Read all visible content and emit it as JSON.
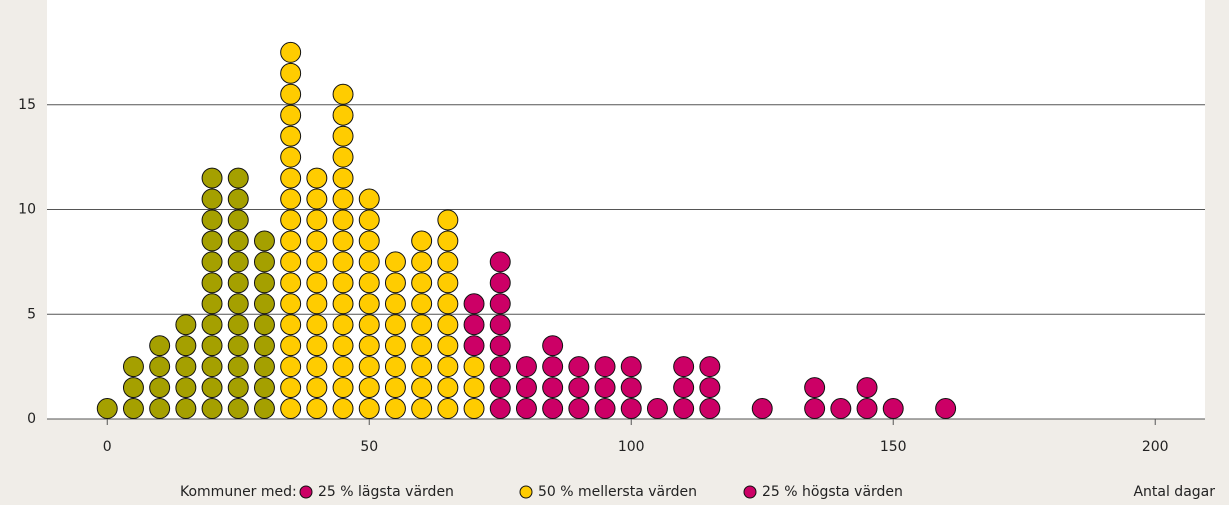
{
  "chart_data": {
    "type": "dot",
    "x_label": "Antal dagar",
    "legend_title": "Kommuner med:",
    "xlim": [
      -11.5,
      209.5
    ],
    "xticks": [
      0,
      50,
      100,
      150,
      200
    ],
    "ylim": [
      0,
      20
    ],
    "yticks": [
      0,
      5,
      10,
      15
    ],
    "grid": true,
    "series": [
      {
        "name": "25 % lägsta värden",
        "color": "#a5a000",
        "legend_color": "#cc0066",
        "x": [
          0,
          5,
          10,
          15,
          20,
          25,
          30
        ],
        "values": [
          1,
          3,
          4,
          5,
          12,
          12,
          9
        ]
      },
      {
        "name": "50 % mellersta värden",
        "color": "#ffcc00",
        "x": [
          35,
          40,
          45,
          50,
          55,
          60,
          65,
          70
        ],
        "values": [
          18,
          12,
          16,
          11,
          8,
          9,
          10,
          3
        ]
      },
      {
        "name": "25 % högsta värden",
        "color": "#cc0066",
        "x": [
          70,
          75,
          80,
          85,
          90,
          95,
          100,
          105,
          110,
          115,
          125,
          135,
          140,
          145,
          150,
          160
        ],
        "values": [
          3,
          8,
          3,
          4,
          3,
          3,
          3,
          1,
          3,
          3,
          1,
          2,
          1,
          2,
          1,
          1
        ]
      }
    ]
  }
}
